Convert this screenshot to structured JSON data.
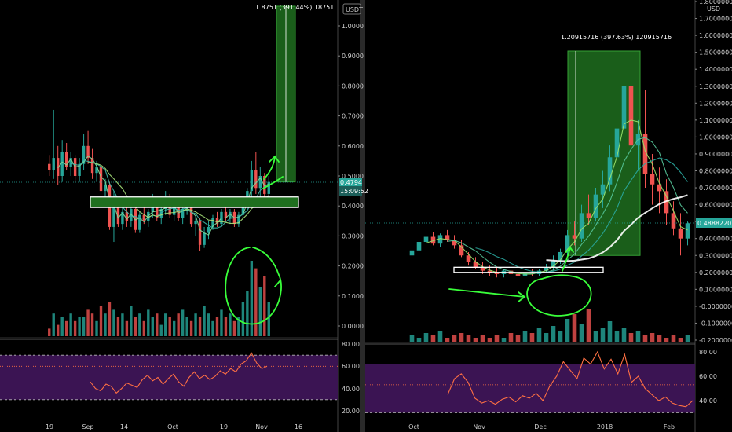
{
  "colors": {
    "up": "#26a69a",
    "down": "#ef5350",
    "rsi_fill": "#3b1453",
    "rsi_line": "#ff7043",
    "target_fill": "#1f6f1f",
    "annotation": "#39ff3a",
    "price_tag": "#26a69a",
    "ma_white": "#ffffff"
  },
  "chart_data": [
    {
      "type": "candlestick",
      "title": "",
      "currency_label": "USDT",
      "y_ticks": [
        "1.0000",
        "0.9000",
        "0.8000",
        "0.7000",
        "0.6000",
        "0.5000",
        "0.4000",
        "0.3000",
        "0.2000",
        "0.1000",
        "0.0000"
      ],
      "ylim": [
        -0.04,
        1.08
      ],
      "x_ticks": [
        "19",
        "Sep",
        "14",
        "Oct",
        "19",
        "Nov",
        "16"
      ],
      "last_price": "0.4794",
      "countdown": "15:09:52",
      "measure_label": "1.8751 (391.44%) 18751",
      "measure_range": [
        0.48,
        1.08
      ],
      "support_zone": [
        0.395,
        0.43
      ],
      "rsi": {
        "ticks": [
          "80.00",
          "60.00",
          "40.00",
          "20.00"
        ],
        "ylim": [
          15,
          85
        ],
        "band": [
          30,
          70
        ],
        "mid": 60
      },
      "candles_desc": "approx. daily OHLC read from chart (data units)",
      "candles": [
        [
          0.54,
          0.57,
          0.5,
          0.52
        ],
        [
          0.52,
          0.72,
          0.49,
          0.56
        ],
        [
          0.56,
          0.6,
          0.47,
          0.5
        ],
        [
          0.5,
          0.62,
          0.48,
          0.58
        ],
        [
          0.58,
          0.61,
          0.52,
          0.53
        ],
        [
          0.53,
          0.58,
          0.5,
          0.56
        ],
        [
          0.56,
          0.57,
          0.48,
          0.5
        ],
        [
          0.5,
          0.56,
          0.48,
          0.54
        ],
        [
          0.54,
          0.64,
          0.52,
          0.6
        ],
        [
          0.6,
          0.65,
          0.54,
          0.56
        ],
        [
          0.56,
          0.59,
          0.49,
          0.51
        ],
        [
          0.51,
          0.55,
          0.48,
          0.53
        ],
        [
          0.53,
          0.54,
          0.44,
          0.45
        ],
        [
          0.45,
          0.49,
          0.4,
          0.47
        ],
        [
          0.47,
          0.48,
          0.32,
          0.33
        ],
        [
          0.33,
          0.45,
          0.28,
          0.41
        ],
        [
          0.41,
          0.43,
          0.33,
          0.34
        ],
        [
          0.34,
          0.4,
          0.32,
          0.38
        ],
        [
          0.38,
          0.41,
          0.33,
          0.35
        ],
        [
          0.35,
          0.42,
          0.33,
          0.39
        ],
        [
          0.39,
          0.4,
          0.31,
          0.32
        ],
        [
          0.32,
          0.38,
          0.31,
          0.37
        ],
        [
          0.37,
          0.41,
          0.34,
          0.35
        ],
        [
          0.35,
          0.39,
          0.33,
          0.38
        ],
        [
          0.38,
          0.44,
          0.36,
          0.41
        ],
        [
          0.41,
          0.42,
          0.35,
          0.36
        ],
        [
          0.36,
          0.4,
          0.34,
          0.39
        ],
        [
          0.39,
          0.45,
          0.37,
          0.43
        ],
        [
          0.43,
          0.44,
          0.36,
          0.37
        ],
        [
          0.37,
          0.42,
          0.35,
          0.4
        ],
        [
          0.4,
          0.41,
          0.35,
          0.36
        ],
        [
          0.36,
          0.4,
          0.34,
          0.39
        ],
        [
          0.39,
          0.43,
          0.37,
          0.41
        ],
        [
          0.41,
          0.42,
          0.33,
          0.34
        ],
        [
          0.34,
          0.37,
          0.3,
          0.35
        ],
        [
          0.35,
          0.36,
          0.25,
          0.27
        ],
        [
          0.27,
          0.33,
          0.26,
          0.31
        ],
        [
          0.31,
          0.35,
          0.29,
          0.33
        ],
        [
          0.33,
          0.37,
          0.32,
          0.36
        ],
        [
          0.36,
          0.38,
          0.33,
          0.34
        ],
        [
          0.34,
          0.39,
          0.33,
          0.38
        ],
        [
          0.38,
          0.4,
          0.35,
          0.36
        ],
        [
          0.36,
          0.39,
          0.34,
          0.38
        ],
        [
          0.38,
          0.39,
          0.33,
          0.34
        ],
        [
          0.34,
          0.38,
          0.33,
          0.37
        ],
        [
          0.37,
          0.42,
          0.36,
          0.41
        ],
        [
          0.41,
          0.46,
          0.39,
          0.45
        ],
        [
          0.45,
          0.55,
          0.43,
          0.52
        ],
        [
          0.52,
          0.58,
          0.44,
          0.46
        ],
        [
          0.46,
          0.53,
          0.43,
          0.5
        ],
        [
          0.5,
          0.51,
          0.42,
          0.44
        ],
        [
          0.44,
          0.5,
          0.43,
          0.48
        ]
      ],
      "volume": [
        0.02,
        0.06,
        0.03,
        0.05,
        0.04,
        0.06,
        0.04,
        0.05,
        0.05,
        0.07,
        0.06,
        0.04,
        0.08,
        0.06,
        0.09,
        0.07,
        0.05,
        0.06,
        0.04,
        0.08,
        0.05,
        0.06,
        0.04,
        0.07,
        0.05,
        0.06,
        0.03,
        0.06,
        0.05,
        0.04,
        0.06,
        0.07,
        0.05,
        0.04,
        0.06,
        0.05,
        0.08,
        0.06,
        0.04,
        0.05,
        0.07,
        0.05,
        0.06,
        0.04,
        0.05,
        0.09,
        0.12,
        0.2,
        0.18,
        0.13,
        0.16,
        0.09
      ],
      "rsi_values": [
        46,
        40,
        38,
        44,
        42,
        36,
        40,
        45,
        43,
        41,
        48,
        52,
        47,
        50,
        44,
        49,
        53,
        46,
        42,
        50,
        55,
        49,
        52,
        48,
        51,
        56,
        53,
        58,
        55,
        62,
        65,
        72,
        63,
        58,
        60
      ]
    },
    {
      "type": "candlestick",
      "title": "",
      "currency_label": "USD",
      "y_ticks": [
        "1.80000000",
        "1.70000000",
        "1.60000000",
        "1.50000000",
        "1.40000000",
        "1.30000000",
        "1.20000000",
        "1.10000000",
        "1.00000000",
        "0.90000000",
        "0.80000000",
        "0.70000000",
        "0.60000000",
        "0.50000000",
        "0.40000000",
        "0.30000000",
        "0.20000000",
        "0.10000000",
        "-0.00000000",
        "-0.10000000",
        "-0.20000000"
      ],
      "ylim": [
        -0.21,
        1.82
      ],
      "x_ticks": [
        "Oct",
        "Nov",
        "Dec",
        "2018",
        "Feb"
      ],
      "last_price": "0.48882207",
      "measure_label": "1.20915716 (397.63%) 120915716",
      "measure_range": [
        0.3,
        1.51
      ],
      "support_zone": [
        0.2,
        0.23
      ],
      "rsi": {
        "ticks": [
          "80.00",
          "60.00",
          "40.00"
        ],
        "ylim": [
          27,
          87
        ],
        "band": [
          30,
          70
        ],
        "mid": 53
      },
      "candles": [
        [
          0.3,
          0.36,
          0.22,
          0.33
        ],
        [
          0.33,
          0.4,
          0.3,
          0.38
        ],
        [
          0.38,
          0.45,
          0.35,
          0.41
        ],
        [
          0.41,
          0.44,
          0.36,
          0.37
        ],
        [
          0.37,
          0.43,
          0.35,
          0.42
        ],
        [
          0.42,
          0.45,
          0.38,
          0.39
        ],
        [
          0.39,
          0.42,
          0.34,
          0.36
        ],
        [
          0.36,
          0.39,
          0.29,
          0.3
        ],
        [
          0.3,
          0.32,
          0.24,
          0.26
        ],
        [
          0.26,
          0.29,
          0.22,
          0.23
        ],
        [
          0.23,
          0.26,
          0.19,
          0.21
        ],
        [
          0.21,
          0.24,
          0.18,
          0.2
        ],
        [
          0.2,
          0.23,
          0.17,
          0.19
        ],
        [
          0.19,
          0.22,
          0.17,
          0.21
        ],
        [
          0.21,
          0.23,
          0.18,
          0.19
        ],
        [
          0.19,
          0.21,
          0.17,
          0.18
        ],
        [
          0.18,
          0.21,
          0.17,
          0.2
        ],
        [
          0.2,
          0.22,
          0.18,
          0.19
        ],
        [
          0.19,
          0.22,
          0.18,
          0.21
        ],
        [
          0.21,
          0.25,
          0.2,
          0.23
        ],
        [
          0.23,
          0.3,
          0.21,
          0.27
        ],
        [
          0.27,
          0.34,
          0.25,
          0.32
        ],
        [
          0.32,
          0.45,
          0.3,
          0.42
        ],
        [
          0.42,
          0.5,
          0.36,
          0.4
        ],
        [
          0.4,
          0.6,
          0.38,
          0.55
        ],
        [
          0.55,
          0.66,
          0.48,
          0.52
        ],
        [
          0.52,
          0.7,
          0.5,
          0.66
        ],
        [
          0.66,
          0.8,
          0.58,
          0.72
        ],
        [
          0.72,
          0.95,
          0.68,
          0.88
        ],
        [
          0.88,
          1.2,
          0.8,
          1.05
        ],
        [
          1.05,
          1.5,
          0.95,
          1.3
        ],
        [
          1.3,
          1.4,
          0.85,
          0.95
        ],
        [
          0.95,
          1.1,
          0.8,
          1.02
        ],
        [
          1.02,
          1.28,
          0.7,
          0.78
        ],
        [
          0.78,
          0.9,
          0.6,
          0.72
        ],
        [
          0.72,
          0.82,
          0.55,
          0.68
        ],
        [
          0.68,
          0.75,
          0.48,
          0.55
        ],
        [
          0.55,
          0.62,
          0.42,
          0.46
        ],
        [
          0.46,
          0.55,
          0.3,
          0.4
        ],
        [
          0.4,
          0.5,
          0.36,
          0.49
        ]
      ],
      "volume": [
        0.03,
        0.02,
        0.04,
        0.03,
        0.05,
        0.02,
        0.03,
        0.04,
        0.03,
        0.02,
        0.03,
        0.02,
        0.03,
        0.02,
        0.04,
        0.03,
        0.05,
        0.04,
        0.06,
        0.04,
        0.07,
        0.05,
        0.1,
        0.12,
        0.08,
        0.14,
        0.05,
        0.06,
        0.09,
        0.05,
        0.06,
        0.04,
        0.05,
        0.03,
        0.04,
        0.03,
        0.02,
        0.03,
        0.02,
        0.03
      ],
      "rsi_values": [
        45,
        58,
        62,
        55,
        42,
        38,
        40,
        37,
        41,
        43,
        39,
        44,
        42,
        46,
        40,
        52,
        60,
        72,
        65,
        58,
        75,
        70,
        80,
        66,
        74,
        62,
        78,
        55,
        60,
        50,
        45,
        40,
        43,
        38,
        36,
        35,
        40
      ]
    }
  ]
}
